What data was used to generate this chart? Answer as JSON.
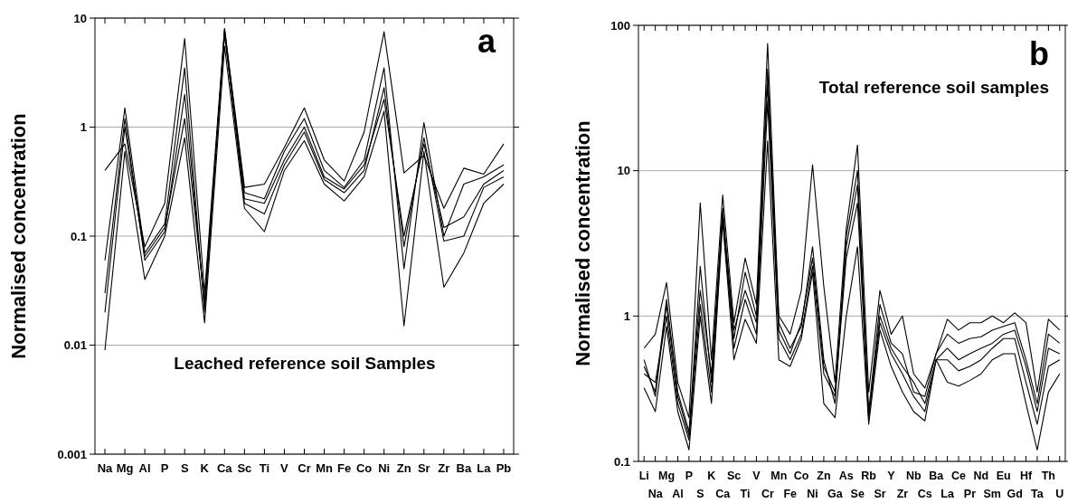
{
  "chart_data": [
    {
      "type": "line",
      "ylabel": "Normalised concentration",
      "annotations": [
        "a",
        "Leached reference soil Samples"
      ],
      "categories": [
        "Na",
        "Mg",
        "Al",
        "P",
        "S",
        "K",
        "Ca",
        "Sc",
        "Ti",
        "V",
        "Cr",
        "Mn",
        "Fe",
        "Co",
        "Ni",
        "Zn",
        "Sr",
        "Zr",
        "Ba",
        "La",
        "Pb"
      ],
      "log": "y",
      "ylim": [
        0.001,
        10
      ],
      "yticks": [
        0.001,
        0.01,
        0.1,
        1,
        10
      ],
      "grid": "y",
      "series": [
        {
          "color": "#000000",
          "values": [
            0.02,
            1.0,
            0.065,
            0.12,
            1.2,
            0.025,
            7,
            0.22,
            0.2,
            0.5,
            1.0,
            0.35,
            0.27,
            0.45,
            1.8,
            0.1,
            0.7,
            0.12,
            0.15,
            0.3,
            0.4
          ]
        },
        {
          "color": "#000000",
          "values": [
            0.4,
            0.7,
            0.08,
            0.2,
            6.5,
            0.03,
            8,
            0.28,
            0.3,
            0.65,
            1.5,
            0.5,
            0.32,
            0.9,
            7.5,
            0.38,
            0.55,
            0.18,
            0.42,
            0.37,
            0.7
          ]
        },
        {
          "color": "#000000",
          "values": [
            0.009,
            0.6,
            0.04,
            0.1,
            0.8,
            0.016,
            5.5,
            0.18,
            0.11,
            0.4,
            0.75,
            0.3,
            0.21,
            0.35,
            1.4,
            0.015,
            0.6,
            0.034,
            0.07,
            0.2,
            0.3
          ]
        },
        {
          "color": "#000000",
          "values": [
            0.06,
            1.5,
            0.07,
            0.13,
            3.5,
            0.02,
            8,
            0.25,
            0.22,
            0.6,
            1.2,
            0.4,
            0.28,
            0.5,
            3.5,
            0.05,
            1.1,
            0.1,
            0.3,
            0.35,
            0.45
          ]
        },
        {
          "color": "#000000",
          "values": [
            0.03,
            1.2,
            0.06,
            0.11,
            2.0,
            0.022,
            7.5,
            0.2,
            0.16,
            0.45,
            0.9,
            0.33,
            0.25,
            0.4,
            2.3,
            0.08,
            0.8,
            0.09,
            0.1,
            0.28,
            0.35
          ]
        }
      ]
    },
    {
      "type": "line",
      "ylabel": "Normalised concentration",
      "annotations": [
        "b",
        "Total reference soil samples"
      ],
      "categories": [
        "Li",
        "Na",
        "Mg",
        "Al",
        "P",
        "S",
        "K",
        "Ca",
        "Sc",
        "Ti",
        "V",
        "Cr",
        "Mn",
        "Fe",
        "Co",
        "Ni",
        "Zn",
        "Ga",
        "As",
        "Se",
        "Rb",
        "Sr",
        "Y",
        "Zr",
        "Nb",
        "Cs",
        "Ba",
        "La",
        "Ce",
        "Pr",
        "Nd",
        "Sm",
        "Eu",
        "Gd",
        "Hf",
        "Ta",
        "Th",
        "U"
      ],
      "log": "y",
      "ylim": [
        0.1,
        100
      ],
      "yticks": [
        0.1,
        1,
        10,
        100
      ],
      "grid": "y",
      "series": [
        {
          "color": "#000000",
          "values": [
            0.45,
            0.3,
            1.3,
            0.3,
            0.16,
            1.5,
            0.4,
            5,
            0.8,
            1.5,
            0.9,
            40,
            0.8,
            0.55,
            0.9,
            2.5,
            0.45,
            0.3,
            3,
            8,
            0.2,
            1.0,
            0.6,
            0.45,
            0.35,
            0.25,
            0.5,
            0.6,
            0.5,
            0.55,
            0.6,
            0.65,
            0.75,
            0.8,
            0.45,
            0.22,
            0.6,
            0.55
          ]
        },
        {
          "color": "#000000",
          "values": [
            0.6,
            0.75,
            1.7,
            0.35,
            0.2,
            6,
            0.5,
            6.8,
            0.9,
            2.5,
            1.2,
            75,
            1.0,
            0.75,
            1.5,
            11,
            1.6,
            0.35,
            4,
            15,
            0.3,
            1.5,
            0.75,
            1.0,
            0.4,
            0.32,
            0.55,
            0.95,
            0.8,
            0.9,
            0.9,
            1.0,
            0.9,
            1.05,
            0.9,
            0.3,
            0.95,
            0.8
          ]
        },
        {
          "color": "#000000",
          "values": [
            0.32,
            0.22,
            0.85,
            0.22,
            0.12,
            1.0,
            0.25,
            4.5,
            0.5,
            0.95,
            0.65,
            16,
            0.5,
            0.45,
            0.7,
            2,
            0.25,
            0.2,
            1,
            3,
            0.18,
            0.8,
            0.45,
            0.3,
            0.22,
            0.19,
            0.5,
            0.35,
            0.33,
            0.36,
            0.4,
            0.5,
            0.55,
            0.55,
            0.25,
            0.12,
            0.3,
            0.4
          ]
        },
        {
          "color": "#000000",
          "values": [
            0.5,
            0.28,
            1.2,
            0.28,
            0.15,
            2.2,
            0.35,
            5.5,
            0.7,
            2,
            1.0,
            50,
            0.9,
            0.6,
            0.85,
            3,
            0.5,
            0.25,
            3.5,
            10,
            0.22,
            1.2,
            0.65,
            0.55,
            0.3,
            0.28,
            0.55,
            0.75,
            0.65,
            0.7,
            0.72,
            0.8,
            0.85,
            0.9,
            0.5,
            0.25,
            0.75,
            0.65
          ]
        },
        {
          "color": "#000000",
          "values": [
            0.4,
            0.35,
            1.0,
            0.25,
            0.14,
            1.2,
            0.3,
            4.8,
            0.6,
            1.3,
            0.75,
            30,
            0.7,
            0.5,
            0.75,
            2.2,
            0.4,
            0.28,
            2.5,
            6,
            0.2,
            0.9,
            0.55,
            0.4,
            0.28,
            0.22,
            0.5,
            0.5,
            0.42,
            0.45,
            0.5,
            0.6,
            0.7,
            0.7,
            0.35,
            0.18,
            0.45,
            0.5
          ]
        }
      ]
    }
  ]
}
